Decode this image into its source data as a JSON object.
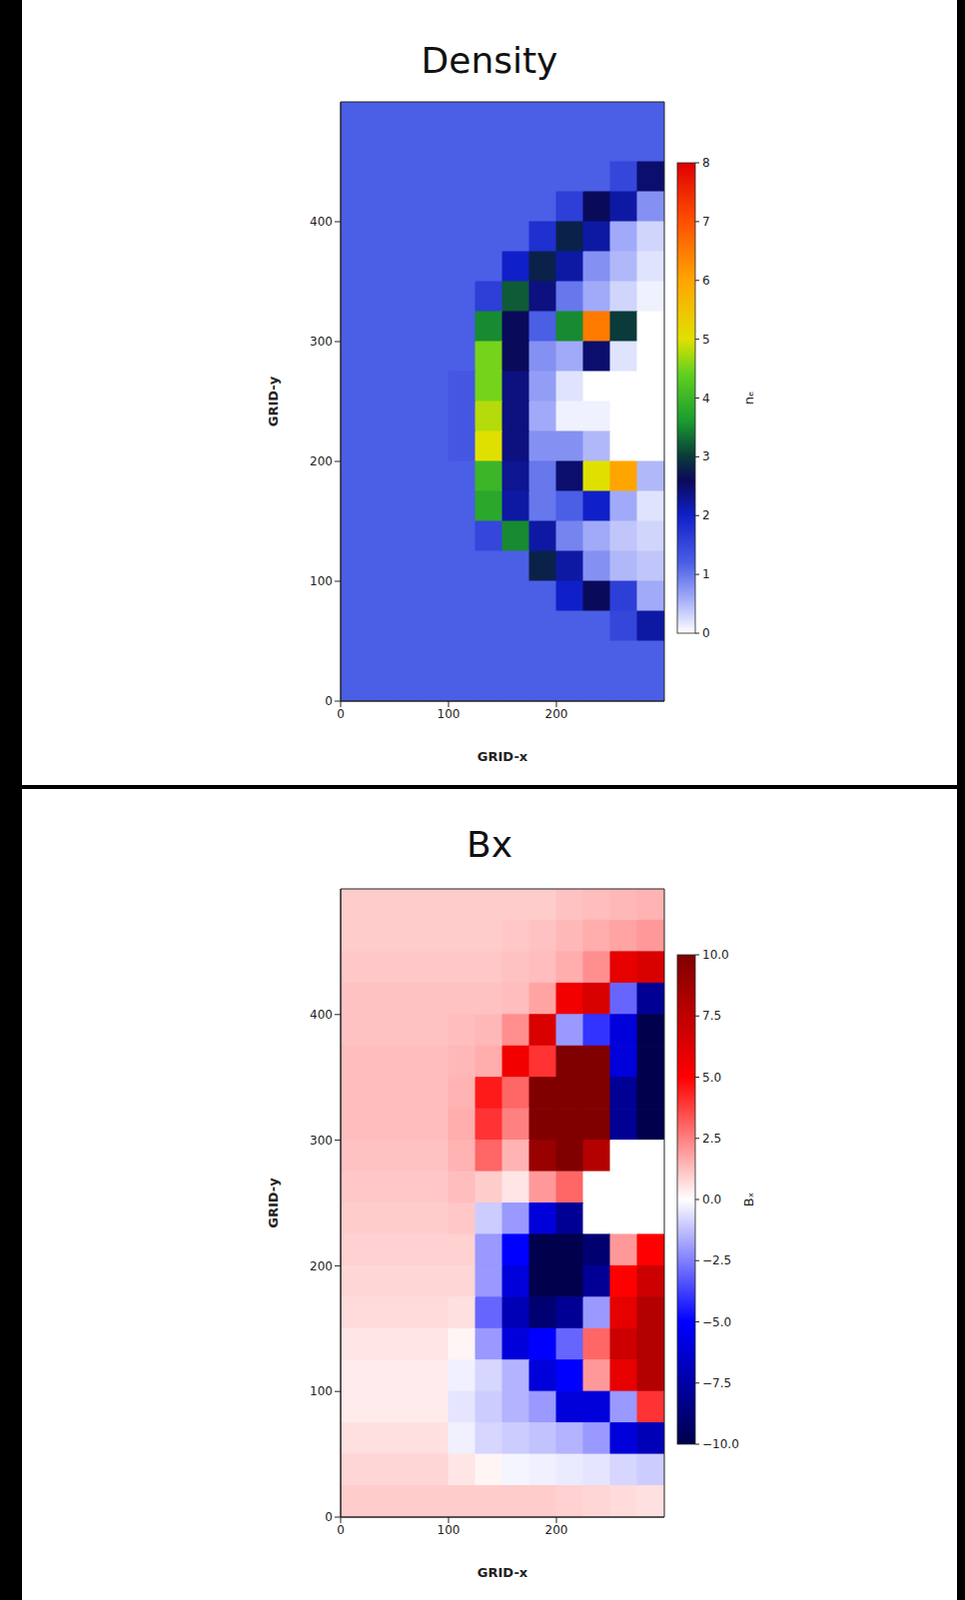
{
  "chart_data": [
    {
      "type": "heatmap",
      "title": "Density",
      "xlabel": "GRID-x",
      "ylabel": "GRID-y",
      "xlim": [
        0,
        300
      ],
      "ylim": [
        0,
        500
      ],
      "xticks": [
        0,
        100,
        200
      ],
      "yticks": [
        0,
        100,
        200,
        300,
        400
      ],
      "x_bins": [
        0,
        25,
        50,
        75,
        100,
        125,
        150,
        175,
        200,
        225,
        250,
        275,
        300
      ],
      "y_bins": [
        500,
        475,
        450,
        425,
        400,
        375,
        350,
        325,
        300,
        275,
        250,
        225,
        200,
        175,
        150,
        125,
        100,
        75,
        50,
        25,
        0
      ],
      "z": [
        [
          1.2,
          1.2,
          1.2,
          1.2,
          1.2,
          1.2,
          1.2,
          1.2,
          1.2,
          1.2,
          1.2,
          1.2
        ],
        [
          1.2,
          1.2,
          1.2,
          1.2,
          1.2,
          1.2,
          1.2,
          1.2,
          1.2,
          1.2,
          1.2,
          1.2
        ],
        [
          1.2,
          1.2,
          1.2,
          1.2,
          1.2,
          1.2,
          1.2,
          1.2,
          1.2,
          1.2,
          1.5,
          2.5
        ],
        [
          1.2,
          1.2,
          1.2,
          1.2,
          1.2,
          1.2,
          1.2,
          1.2,
          1.6,
          2.6,
          2.2,
          0.8
        ],
        [
          1.2,
          1.2,
          1.2,
          1.2,
          1.2,
          1.2,
          1.2,
          1.8,
          2.8,
          2.2,
          0.6,
          0.3
        ],
        [
          1.2,
          1.2,
          1.2,
          1.2,
          1.2,
          1.2,
          2.0,
          2.8,
          2.2,
          0.8,
          0.5,
          0.2
        ],
        [
          1.2,
          1.2,
          1.2,
          1.2,
          1.2,
          1.6,
          3.2,
          2.4,
          1.0,
          0.6,
          0.3,
          0.1
        ],
        [
          1.2,
          1.2,
          1.2,
          1.2,
          1.2,
          3.5,
          2.6,
          1.2,
          3.5,
          6.5,
          3.0,
          0
        ],
        [
          1.2,
          1.2,
          1.2,
          1.2,
          1.2,
          4.5,
          2.6,
          0.8,
          0.6,
          2.5,
          0.2,
          0
        ],
        [
          1.2,
          1.2,
          1.2,
          1.2,
          1.3,
          4.5,
          2.4,
          0.7,
          0.2,
          0,
          0,
          0
        ],
        [
          1.2,
          1.2,
          1.2,
          1.2,
          1.3,
          4.8,
          2.4,
          0.6,
          0.1,
          0.1,
          0,
          0
        ],
        [
          1.2,
          1.2,
          1.2,
          1.2,
          1.3,
          5.0,
          2.4,
          0.8,
          0.8,
          0.5,
          0,
          0
        ],
        [
          1.2,
          1.2,
          1.2,
          1.2,
          1.2,
          4.0,
          2.3,
          1.0,
          2.5,
          5.0,
          6.0,
          0.5
        ],
        [
          1.2,
          1.2,
          1.2,
          1.2,
          1.2,
          3.8,
          2.2,
          1.0,
          1.2,
          2.0,
          0.6,
          0.2
        ],
        [
          1.2,
          1.2,
          1.2,
          1.2,
          1.2,
          1.5,
          3.5,
          2.2,
          0.9,
          0.6,
          0.4,
          0.3
        ],
        [
          1.2,
          1.2,
          1.2,
          1.2,
          1.2,
          1.2,
          1.2,
          2.8,
          2.2,
          0.8,
          0.5,
          0.4
        ],
        [
          1.2,
          1.2,
          1.2,
          1.2,
          1.2,
          1.2,
          1.2,
          1.2,
          2.0,
          2.6,
          1.6,
          0.6
        ],
        [
          1.2,
          1.2,
          1.2,
          1.2,
          1.2,
          1.2,
          1.2,
          1.2,
          1.2,
          1.2,
          1.5,
          2.2
        ],
        [
          1.2,
          1.2,
          1.2,
          1.2,
          1.2,
          1.2,
          1.2,
          1.2,
          1.2,
          1.2,
          1.2,
          1.2
        ],
        [
          1.2,
          1.2,
          1.2,
          1.2,
          1.2,
          1.2,
          1.2,
          1.2,
          1.2,
          1.2,
          1.2,
          1.2
        ]
      ],
      "colorbar": {
        "label": "nₑ",
        "range": [
          0,
          8
        ],
        "ticks": [
          0,
          1,
          2,
          3,
          4,
          5,
          6,
          7,
          8
        ]
      }
    },
    {
      "type": "heatmap",
      "title": "Bx",
      "xlabel": "GRID-x",
      "ylabel": "GRID-y",
      "xlim": [
        0,
        300
      ],
      "ylim": [
        0,
        500
      ],
      "xticks": [
        0,
        100,
        200
      ],
      "yticks": [
        0,
        100,
        200,
        300,
        400
      ],
      "x_bins": [
        0,
        25,
        50,
        75,
        100,
        125,
        150,
        175,
        200,
        225,
        250,
        275,
        300
      ],
      "y_bins": [
        500,
        475,
        450,
        425,
        400,
        375,
        350,
        325,
        300,
        275,
        250,
        225,
        200,
        175,
        150,
        125,
        100,
        75,
        50,
        25,
        0
      ],
      "z": [
        [
          1.0,
          1.0,
          1.0,
          1.0,
          1.0,
          1.0,
          1.0,
          1.0,
          1.2,
          1.3,
          1.4,
          1.5
        ],
        [
          1.0,
          1.0,
          1.0,
          1.0,
          1.0,
          1.0,
          1.1,
          1.2,
          1.4,
          1.6,
          1.8,
          2.0
        ],
        [
          1.1,
          1.1,
          1.1,
          1.1,
          1.1,
          1.1,
          1.2,
          1.3,
          1.6,
          2.2,
          6.0,
          6.5
        ],
        [
          1.2,
          1.2,
          1.2,
          1.2,
          1.2,
          1.2,
          1.3,
          1.8,
          5.5,
          6.5,
          -3,
          -8
        ],
        [
          1.2,
          1.2,
          1.2,
          1.2,
          1.3,
          1.4,
          2.2,
          6.5,
          -2,
          -4,
          -6,
          -10
        ],
        [
          1.3,
          1.3,
          1.3,
          1.3,
          1.4,
          1.6,
          5.5,
          4,
          10,
          10,
          -6,
          -10
        ],
        [
          1.3,
          1.3,
          1.3,
          1.3,
          1.5,
          4.5,
          3,
          10,
          10,
          10,
          -8,
          -10
        ],
        [
          1.3,
          1.3,
          1.3,
          1.3,
          1.6,
          4,
          2.5,
          10,
          10,
          10,
          -8,
          -10
        ],
        [
          1.2,
          1.2,
          1.2,
          1.2,
          1.5,
          3,
          1.5,
          9,
          10,
          8,
          0,
          0
        ],
        [
          1.1,
          1.1,
          1.1,
          1.1,
          1.3,
          1,
          0.5,
          2,
          3,
          0,
          0,
          0
        ],
        [
          1.0,
          1.0,
          1.0,
          1.0,
          1.1,
          -1,
          -2,
          -6,
          -8,
          0,
          0,
          0
        ],
        [
          0.9,
          0.9,
          0.9,
          0.9,
          0.9,
          -2,
          -5,
          -10,
          -10,
          -9,
          2,
          5
        ],
        [
          0.8,
          0.8,
          0.8,
          0.8,
          0.8,
          -2,
          -6,
          -10,
          -10,
          -8,
          5,
          7
        ],
        [
          0.7,
          0.7,
          0.7,
          0.7,
          0.6,
          -3,
          -7,
          -9,
          -8,
          -2,
          6,
          8
        ],
        [
          0.5,
          0.5,
          0.5,
          0.5,
          0.2,
          -2,
          -6,
          -5,
          -3,
          3,
          7,
          8
        ],
        [
          0.4,
          0.4,
          0.4,
          0.4,
          -0.3,
          -0.8,
          -1.5,
          -6,
          -5,
          2,
          6,
          8
        ],
        [
          0.4,
          0.4,
          0.4,
          0.4,
          -0.5,
          -1,
          -1.5,
          -2,
          -6,
          -6,
          -2,
          4
        ],
        [
          0.6,
          0.6,
          0.6,
          0.6,
          -0.3,
          -0.8,
          -1,
          -1.2,
          -1.5,
          -2,
          -6,
          -7
        ],
        [
          0.8,
          0.8,
          0.8,
          0.8,
          0.5,
          0.2,
          -0.2,
          -0.3,
          -0.4,
          -0.5,
          -0.8,
          -1
        ],
        [
          1.0,
          1.0,
          1.0,
          1.0,
          1.0,
          1.0,
          1.0,
          1.0,
          0.9,
          0.8,
          0.7,
          0.6
        ]
      ],
      "colorbar": {
        "label": "Bₓ",
        "range": [
          -10,
          10
        ],
        "ticks": [
          {
            "value": -10,
            "label": "−10.0"
          },
          {
            "value": -7.5,
            "label": "−7.5"
          },
          {
            "value": -5,
            "label": "−5.0"
          },
          {
            "value": -2.5,
            "label": "−2.5"
          },
          {
            "value": 0,
            "label": "0.0"
          },
          {
            "value": 2.5,
            "label": "2.5"
          },
          {
            "value": 5,
            "label": "5.0"
          },
          {
            "value": 7.5,
            "label": "7.5"
          },
          {
            "value": 10,
            "label": "10.0"
          }
        ]
      }
    }
  ]
}
